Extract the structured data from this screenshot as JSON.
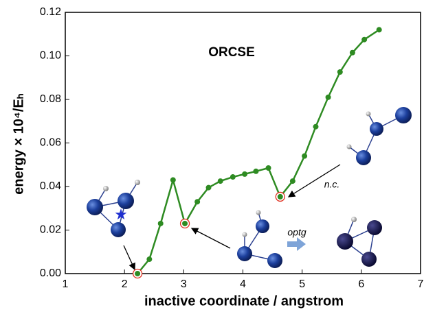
{
  "chart_data": {
    "type": "line",
    "annotation": "ORCSE",
    "annotations": [
      "n.c.",
      "optg"
    ],
    "xlabel": "inactive coordinate / angstrom",
    "ylabel": "energy × 10⁴/Eₕ",
    "x": [
      2.22,
      2.42,
      2.61,
      2.82,
      3.02,
      3.23,
      3.42,
      3.62,
      3.83,
      4.03,
      4.22,
      4.43,
      4.63,
      4.84,
      5.04,
      5.23,
      5.44,
      5.64,
      5.85,
      6.05,
      6.3
    ],
    "series": [
      {
        "color": "#2e8b22",
        "values": [
          0.0,
          0.0066,
          0.023,
          0.043,
          0.023,
          0.033,
          0.0395,
          0.0425,
          0.0444,
          0.0457,
          0.047,
          0.0485,
          0.0353,
          0.0425,
          0.054,
          0.0675,
          0.081,
          0.0926,
          0.1015,
          0.1075,
          0.112
        ]
      }
    ],
    "highlight_indices": [
      0,
      4,
      12
    ],
    "highlight_color": "#e03020",
    "xlim": [
      1,
      7
    ],
    "xticks": [
      1,
      2,
      3,
      4,
      5,
      6,
      7
    ],
    "ylim": [
      0,
      0.12
    ],
    "yticks": [
      {
        "value": 0,
        "label": "0.00"
      },
      {
        "value": 0.02,
        "label": "0.02"
      },
      {
        "value": 0.04,
        "label": "0.04"
      },
      {
        "value": 0.06,
        "label": "0.06"
      },
      {
        "value": 0.08,
        "label": "0.08"
      },
      {
        "value": 0.1,
        "label": "0.10"
      },
      {
        "value": 0.12,
        "label": "0.12"
      }
    ]
  }
}
